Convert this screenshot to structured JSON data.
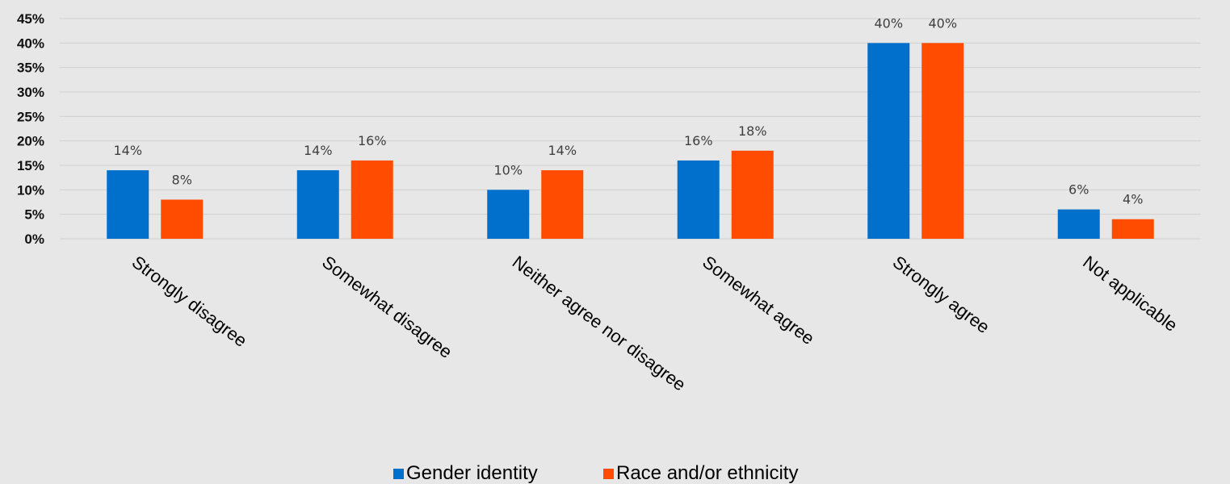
{
  "chart_data": {
    "type": "bar",
    "categories": [
      "Strongly disagree",
      "Somewhat disagree",
      "Neither agree nor disagree",
      "Somewhat agree",
      "Strongly agree",
      "Not applicable"
    ],
    "series": [
      {
        "name": "Gender identity",
        "values": [
          14,
          14,
          10,
          16,
          40,
          6
        ],
        "labels": [
          "14%",
          "14%",
          "10%",
          "16%",
          "40%",
          "6%"
        ],
        "color": "#0070cc"
      },
      {
        "name": "Race and/or ethnicity",
        "values": [
          8,
          16,
          14,
          18,
          40,
          4
        ],
        "labels": [
          "8%",
          "16%",
          "14%",
          "18%",
          "40%",
          "4%"
        ],
        "color": "#ff4c00"
      }
    ],
    "yticks": [
      0,
      5,
      10,
      15,
      20,
      25,
      30,
      35,
      40,
      45
    ],
    "ytick_labels": [
      "0%",
      "5%",
      "10%",
      "15%",
      "20%",
      "25%",
      "30%",
      "35%",
      "40%",
      "45%"
    ],
    "ylim": [
      0,
      45
    ],
    "grid": true,
    "legend": "bottom-center",
    "title": "",
    "xlabel": "",
    "ylabel": ""
  },
  "colors": {
    "background": "#e7e7e7",
    "gridline": "#d0d0d0"
  }
}
